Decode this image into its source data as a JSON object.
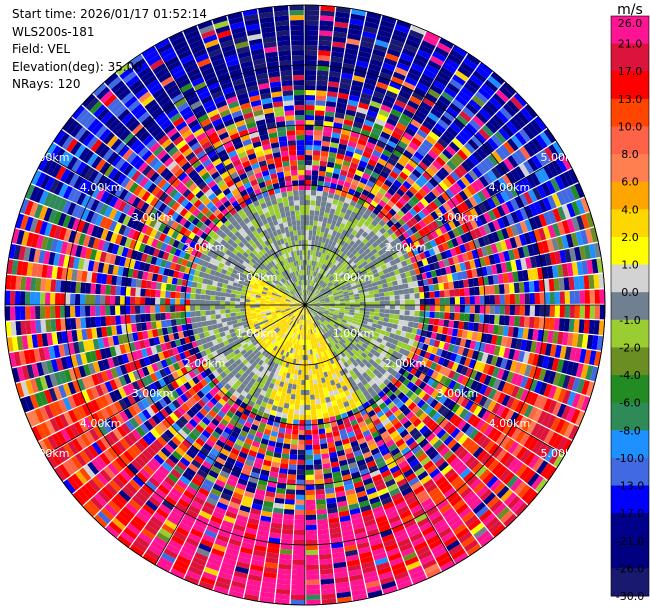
{
  "header": {
    "start_time": "Start time: 2026/01/17 01:52:14",
    "station": "WLS200s-181",
    "field": "Field: VEL",
    "elevation": "Elevation(deg): 35.00",
    "nrays": "NRays: 120"
  },
  "chart_data": {
    "type": "heatmap",
    "subtype": "polar-ppi",
    "field": "VEL",
    "units": "m/s",
    "n_rays": 120,
    "elevation_deg": 35.0,
    "max_range_km": 5.0,
    "ring_labels": [
      "1.00km",
      "2.00km",
      "3.00km",
      "4.00km",
      "5.00km"
    ],
    "ring_ranges_km": [
      1,
      2,
      3,
      4,
      5
    ],
    "colorbar": {
      "unit": "m/s",
      "levels": [
        26.0,
        21.0,
        17.0,
        13.0,
        10.0,
        8.0,
        6.0,
        4.0,
        2.0,
        1.0,
        0.0,
        -1.0,
        -2.0,
        -4.0,
        -6.0,
        -8.0,
        -10.0,
        -13.0,
        -17.0,
        -21.0,
        -26.0,
        -30.0
      ],
      "tick_labels": [
        "26.0",
        "21.0",
        "17.0",
        "13.0",
        "10.0",
        "8.0",
        "6.0",
        "4.0",
        "2.0",
        "1.0",
        "0.0",
        "-1.0",
        "-2.0",
        "-4.0",
        "-6.0",
        "-8.0",
        "-10.0",
        "-13.0",
        "-17.0",
        "-21.0",
        "-26.0",
        "-30.0"
      ],
      "colors": [
        "#ff1493",
        "#dc143c",
        "#ff0000",
        "#ff4500",
        "#ff6347",
        "#ff7f50",
        "#ffa500",
        "#ffd700",
        "#ffff00",
        "#d3d3d3",
        "#708090",
        "#9acd32",
        "#6b8e23",
        "#228b22",
        "#2e8b57",
        "#1e90ff",
        "#4169e1",
        "#0000ff",
        "#00008b",
        "#000080",
        "#191970"
      ]
    },
    "pattern": {
      "near_field_range_km": 1.0,
      "near_field_negative_sector_deg": [
        -60,
        150
      ],
      "far_field_positive_sector_deg": [
        90,
        270
      ],
      "far_field_negative_sector_deg": [
        -90,
        90
      ],
      "far_field_start_km": 3.6,
      "mid_range_noise": true
    }
  }
}
